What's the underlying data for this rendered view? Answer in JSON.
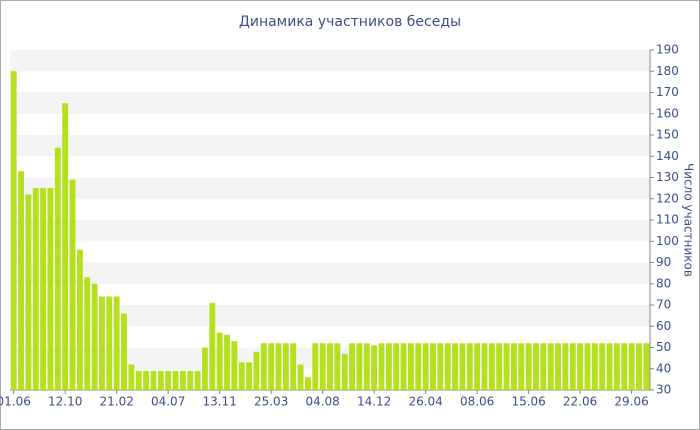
{
  "chart_data": {
    "type": "bar",
    "title": "Динамика участников беседы",
    "y_label": "Число участников",
    "categories": [
      "01.06",
      null,
      null,
      null,
      null,
      null,
      null,
      "12.10",
      null,
      null,
      null,
      null,
      null,
      null,
      "21.02",
      null,
      null,
      null,
      null,
      null,
      null,
      "04.07",
      null,
      null,
      null,
      null,
      null,
      null,
      "13.11",
      null,
      null,
      null,
      null,
      null,
      null,
      "25.03",
      null,
      null,
      null,
      null,
      null,
      null,
      "04.08",
      null,
      null,
      null,
      null,
      null,
      null,
      "14.12",
      null,
      null,
      null,
      null,
      null,
      null,
      "26.04",
      null,
      null,
      null,
      null,
      null,
      null,
      "08.06",
      null,
      null,
      null,
      null,
      null,
      null,
      "15.06",
      null,
      null,
      null,
      null,
      null,
      null,
      "22.06",
      null,
      null,
      null,
      null,
      null,
      null,
      "29.06",
      null,
      null
    ],
    "values": [
      180,
      133,
      122,
      125,
      125,
      125,
      144,
      165,
      129,
      96,
      83,
      80,
      74,
      74,
      74,
      66,
      42,
      39,
      39,
      39,
      39,
      39,
      39,
      39,
      39,
      39,
      50,
      71,
      57,
      56,
      53,
      43,
      43,
      48,
      52,
      52,
      52,
      52,
      52,
      42,
      36,
      52,
      52,
      52,
      52,
      47,
      52,
      52,
      52,
      51,
      52,
      52,
      52,
      52,
      52,
      52,
      52,
      52,
      52,
      52,
      52,
      52,
      52,
      52,
      52,
      52,
      52,
      52,
      52,
      52,
      52,
      52,
      52,
      52,
      52,
      52,
      52,
      52,
      52,
      52,
      52,
      52,
      52,
      52,
      52,
      52,
      52
    ],
    "color": "#b5e01e",
    "ylim": [
      30,
      190
    ],
    "yticks": [
      30,
      40,
      50,
      60,
      70,
      80,
      90,
      100,
      110,
      120,
      130,
      140,
      150,
      160,
      170,
      180,
      190
    ],
    "grid": true
  }
}
